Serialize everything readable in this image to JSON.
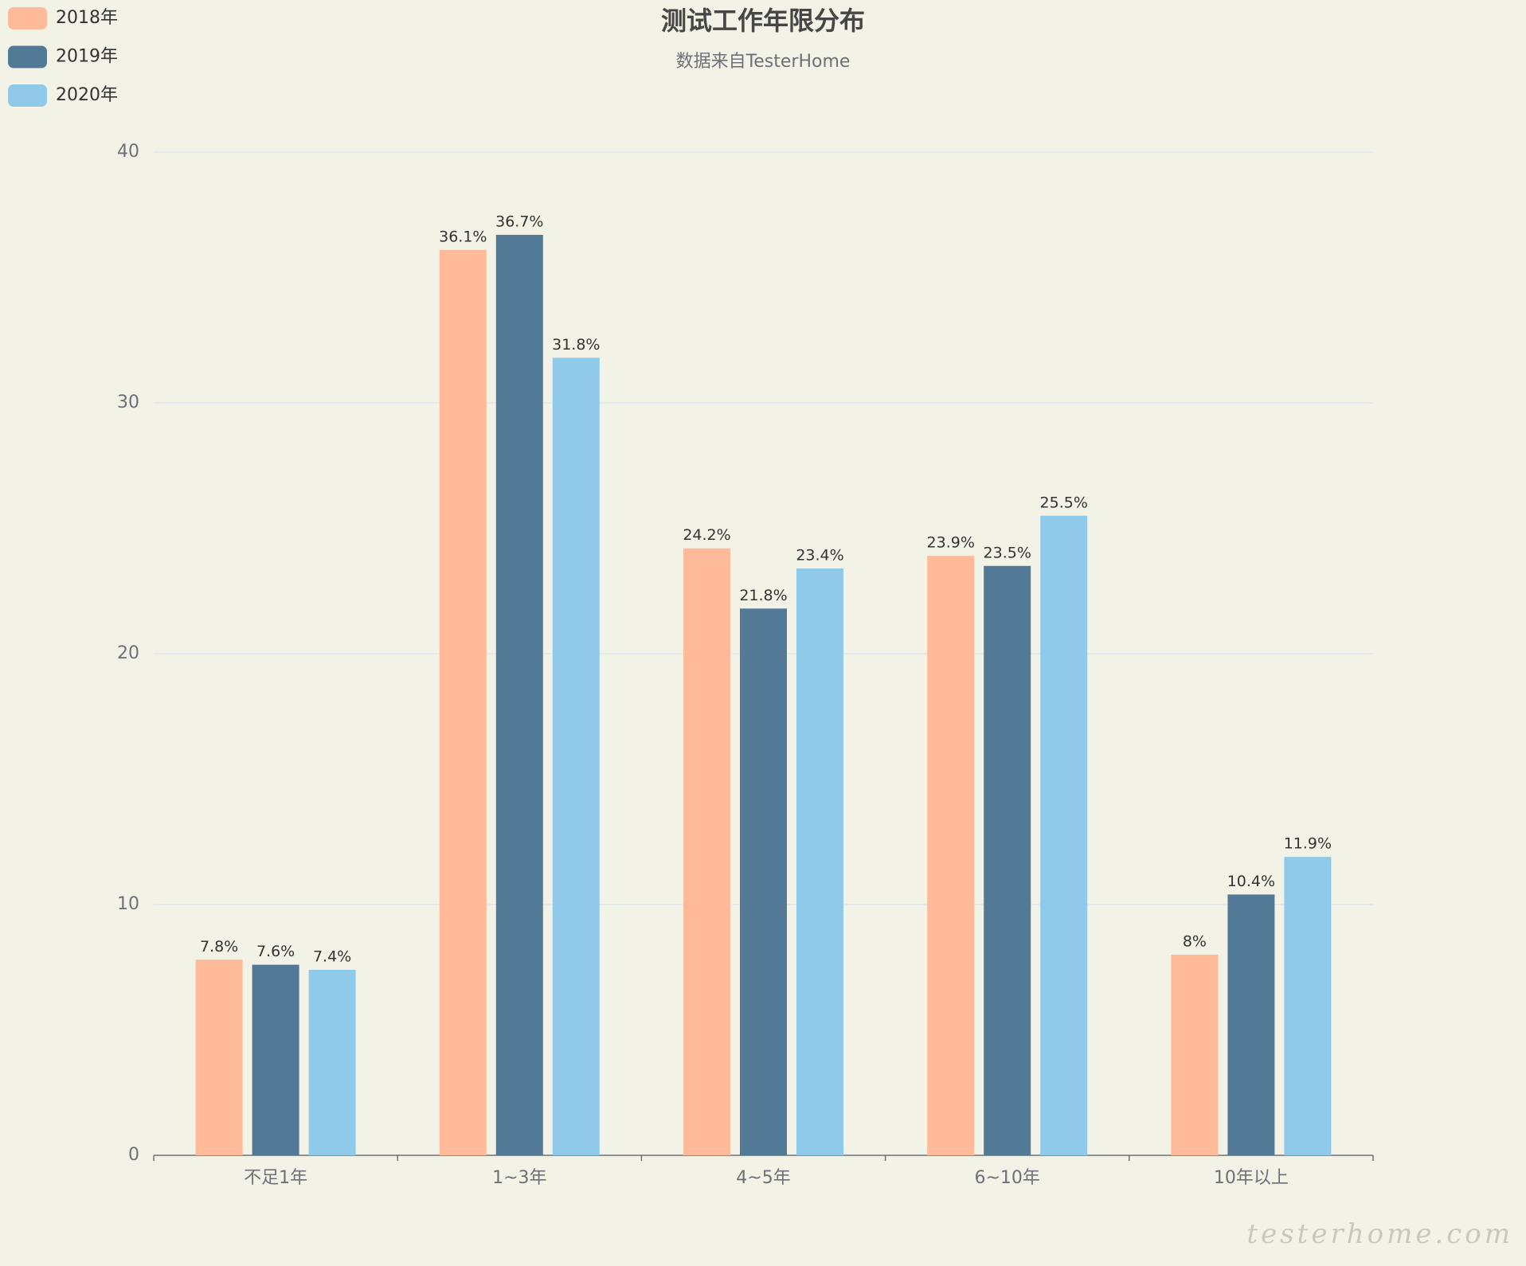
{
  "chart_data": {
    "type": "bar",
    "title": "测试工作年限分布",
    "subtitle": "数据来自TesterHome",
    "categories": [
      "不足1年",
      "1~3年",
      "4~5年",
      "6~10年",
      "10年以上"
    ],
    "series": [
      {
        "name": "2018年",
        "color": "#ffbb99",
        "values": [
          7.8,
          36.1,
          24.2,
          23.9,
          8
        ],
        "value_labels": [
          "7.8%",
          "36.1%",
          "24.2%",
          "23.9%",
          "8%"
        ]
      },
      {
        "name": "2019年",
        "color": "#527a96",
        "values": [
          7.6,
          36.7,
          21.8,
          23.5,
          10.4
        ],
        "value_labels": [
          "7.6%",
          "36.7%",
          "21.8%",
          "23.5%",
          "10.4%"
        ]
      },
      {
        "name": "2020年",
        "color": "#8fcaea",
        "values": [
          7.4,
          31.8,
          23.4,
          25.5,
          11.9
        ],
        "value_labels": [
          "7.4%",
          "31.8%",
          "23.4%",
          "25.5%",
          "11.9%"
        ]
      }
    ],
    "ylim": [
      0,
      40
    ],
    "yticks": [
      0,
      10,
      20,
      30,
      40
    ],
    "grid": true,
    "legend": "top-left",
    "watermark": "testerhome.com"
  }
}
